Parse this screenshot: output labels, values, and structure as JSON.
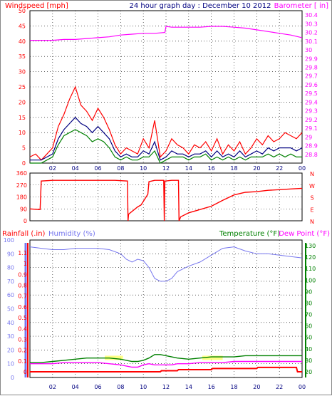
{
  "header": {
    "title": "24 hour graph day : December 10 2012"
  },
  "colors": {
    "wind": "#ff0000",
    "avg_wind": "#000080",
    "wind_low": "#008000",
    "barometer": "#ff00ff",
    "direction": "#ff0000",
    "humidity": "#7777ee",
    "temperature": "#008000",
    "dewpoint": "#ff00ff",
    "rain": "#ff0000",
    "solar": "#ffff66",
    "grid": "#000000"
  },
  "x_axis": {
    "tick_labels": [
      "02",
      "04",
      "06",
      "08",
      "10",
      "12",
      "14",
      "16",
      "18",
      "20",
      "22",
      "00"
    ],
    "x_range_hours": [
      0,
      24
    ]
  },
  "chart_data": [
    {
      "type": "line",
      "panel": "wind-barometer",
      "left_axis_label": "Windspeed [mph]",
      "right_axis_label": "Barometer [ in]",
      "left_ticks": [
        "0",
        "5",
        "10",
        "15",
        "20",
        "25",
        "30",
        "35",
        "40",
        "45",
        "50"
      ],
      "right_ticks": [
        "28.8",
        "28.9",
        "29",
        "29.1",
        "29.2",
        "29.3",
        "29.4",
        "29.5",
        "29.6",
        "29.7",
        "29.8",
        "29.9",
        "30",
        "30.1",
        "30.2",
        "30.3",
        "30.4"
      ],
      "ylim_left": [
        0,
        50
      ],
      "ylim_right": [
        28.7,
        30.45
      ],
      "grid": true,
      "series": [
        {
          "axis": "right",
          "color_key": "barometer",
          "x": [
            0,
            1,
            2,
            3,
            4,
            5,
            6,
            7,
            8,
            9,
            10,
            11,
            11.9,
            12.0,
            12.5,
            13,
            14,
            15,
            16,
            17,
            18,
            19,
            20,
            21,
            22,
            23,
            24
          ],
          "y": [
            30.11,
            30.11,
            30.11,
            30.12,
            30.12,
            30.13,
            30.14,
            30.15,
            30.17,
            30.18,
            30.19,
            30.19,
            30.2,
            30.27,
            30.26,
            30.26,
            30.26,
            30.26,
            30.27,
            30.27,
            30.26,
            30.25,
            30.23,
            30.21,
            30.19,
            30.17,
            30.14
          ]
        },
        {
          "axis": "left",
          "color_key": "wind",
          "x": [
            0,
            0.5,
            1,
            1.5,
            2,
            2.5,
            3,
            3.5,
            4,
            4.5,
            5,
            5.5,
            6,
            6.5,
            7,
            7.5,
            8,
            8.5,
            9,
            9.5,
            10,
            10.5,
            11,
            11.5,
            12,
            12.5,
            13,
            13.5,
            14,
            14.5,
            15,
            15.5,
            16,
            16.5,
            17,
            17.5,
            18,
            18.5,
            19,
            19.5,
            20,
            20.5,
            21,
            21.5,
            22,
            22.5,
            23,
            23.5,
            24
          ],
          "y": [
            2,
            3,
            1,
            3,
            5,
            12,
            16,
            21,
            25,
            19,
            17,
            14,
            18,
            15,
            11,
            6,
            3,
            5,
            4,
            3,
            8,
            5,
            14,
            2,
            4,
            8,
            6,
            5,
            3,
            6,
            5,
            7,
            4,
            8,
            3,
            6,
            4,
            7,
            3,
            5,
            8,
            6,
            9,
            7,
            8,
            10,
            9,
            8,
            10
          ]
        },
        {
          "axis": "left",
          "color_key": "avg_wind",
          "x": [
            0,
            0.5,
            1,
            1.5,
            2,
            2.5,
            3,
            3.5,
            4,
            4.5,
            5,
            5.5,
            6,
            6.5,
            7,
            7.5,
            8,
            8.5,
            9,
            9.5,
            10,
            10.5,
            11,
            11.5,
            12,
            12.5,
            13,
            13.5,
            14,
            14.5,
            15,
            15.5,
            16,
            16.5,
            17,
            17.5,
            18,
            18.5,
            19,
            19.5,
            20,
            20.5,
            21,
            21.5,
            22,
            22.5,
            23,
            23.5,
            24
          ],
          "y": [
            1,
            1,
            1,
            2,
            3,
            8,
            11,
            13,
            15,
            13,
            12,
            10,
            12,
            10,
            8,
            4,
            2,
            3,
            2,
            2,
            4,
            3,
            7,
            1,
            2,
            4,
            3,
            3,
            2,
            3,
            3,
            4,
            2,
            4,
            2,
            3,
            2,
            4,
            2,
            3,
            4,
            3,
            5,
            4,
            5,
            5,
            5,
            4,
            5
          ]
        },
        {
          "axis": "left",
          "color_key": "wind_low",
          "x": [
            0,
            0.5,
            1,
            1.5,
            2,
            2.5,
            3,
            3.5,
            4,
            4.5,
            5,
            5.5,
            6,
            6.5,
            7,
            7.5,
            8,
            8.5,
            9,
            9.5,
            10,
            10.5,
            11,
            11.5,
            12,
            12.5,
            13,
            13.5,
            14,
            14.5,
            15,
            15.5,
            16,
            16.5,
            17,
            17.5,
            18,
            18.5,
            19,
            19.5,
            20,
            20.5,
            21,
            21.5,
            22,
            22.5,
            23,
            23.5,
            24
          ],
          "y": [
            0,
            0,
            0,
            1,
            2,
            6,
            9,
            10,
            11,
            10,
            9,
            7,
            8,
            7,
            5,
            2,
            1,
            2,
            1,
            1,
            2,
            2,
            4,
            0,
            1,
            2,
            2,
            2,
            1,
            2,
            2,
            3,
            1,
            2,
            1,
            2,
            1,
            2,
            1,
            2,
            2,
            2,
            3,
            2,
            3,
            2,
            3,
            2,
            2
          ]
        }
      ]
    },
    {
      "type": "line",
      "panel": "wind-direction",
      "left_ticks": [
        "0",
        "90",
        "180",
        "270",
        "360"
      ],
      "right_ticks": [
        "N",
        "W",
        "S",
        "E",
        "N"
      ],
      "ylim": [
        0,
        360
      ],
      "grid": true,
      "series": [
        {
          "color_key": "direction",
          "x": [
            0,
            0.9,
            1.0,
            2,
            4,
            6,
            7.5,
            8.6,
            8.65,
            8.7,
            9.5,
            9.8,
            10.4,
            10.5,
            11,
            11.8,
            11.85,
            11.9,
            12.5,
            12.6,
            13.1,
            13.15,
            13.3,
            14,
            15,
            16,
            17,
            18,
            19,
            20,
            21,
            22,
            23,
            24
          ],
          "y": [
            90,
            85,
            300,
            305,
            305,
            305,
            305,
            300,
            0,
            50,
            105,
            120,
            200,
            295,
            305,
            305,
            0,
            300,
            305,
            305,
            305,
            0,
            30,
            60,
            85,
            110,
            155,
            195,
            215,
            220,
            230,
            235,
            240,
            245
          ]
        }
      ]
    },
    {
      "type": "line",
      "panel": "temp-humidity-rain",
      "left_axis_label_rain": "Rainfall (.in)",
      "left_axis_label_humidity": "Humidity (%)",
      "right_axis_label_temperature": "Temperature (°F)",
      "right_axis_label_dewpoint": "Dew Point (°F)",
      "humidity_ticks": [
        "0",
        "10",
        "20",
        "30",
        "40",
        "50",
        "60",
        "70",
        "80",
        "90",
        "100"
      ],
      "rain_ticks": [
        "0",
        "0.1",
        "0.2",
        "0.3",
        "0.4",
        "0.5",
        "0.6",
        "0.7",
        "0.8",
        "0.9",
        "1",
        "1.1"
      ],
      "temperature_ticks": [
        "20",
        "30",
        "40",
        "50",
        "60",
        "70",
        "80",
        "90",
        "100",
        "110",
        "120",
        "130"
      ],
      "ylim_humidity": [
        0,
        100
      ],
      "ylim_temperature": [
        15,
        135
      ],
      "grid": true,
      "series": [
        {
          "name": "Humidity (%)",
          "axis": "humidity",
          "color_key": "humidity",
          "x": [
            0,
            1,
            2,
            3,
            4,
            5,
            6,
            7,
            8,
            8.5,
            9,
            9.5,
            10,
            10.5,
            11,
            11.5,
            12,
            12.5,
            13,
            14,
            15,
            16,
            17,
            18,
            19,
            20,
            21,
            22,
            23,
            24
          ],
          "y": [
            95,
            94,
            93,
            93,
            94,
            94,
            94,
            93,
            90,
            86,
            84,
            86,
            85,
            80,
            72,
            70,
            70,
            72,
            77,
            81,
            84,
            89,
            94,
            95,
            92,
            90,
            90,
            89,
            88,
            87
          ]
        },
        {
          "name": "Temperature (°F)",
          "axis": "temperature",
          "color_key": "temperature",
          "x": [
            0,
            1,
            2,
            3,
            4,
            5,
            6,
            7,
            8,
            8.5,
            9,
            9.5,
            10,
            10.5,
            11,
            11.5,
            12,
            12.5,
            13,
            14,
            15,
            16,
            17,
            18,
            19,
            20,
            21,
            22,
            23,
            24
          ],
          "y": [
            28,
            28,
            29,
            30,
            31,
            32,
            32,
            32,
            31,
            30,
            29,
            29,
            30,
            32,
            35,
            35,
            34,
            33,
            32,
            31,
            32,
            33,
            33,
            33,
            34,
            34,
            34,
            34,
            34,
            34
          ]
        },
        {
          "name": "Dew Point (°F)",
          "axis": "temperature",
          "color_key": "dewpoint",
          "x": [
            0,
            1,
            2,
            3,
            4,
            5,
            6,
            7,
            8,
            8.5,
            9,
            9.5,
            10,
            10.5,
            11,
            11.5,
            12,
            12.5,
            13,
            14,
            15,
            16,
            17,
            18,
            19,
            20,
            21,
            22,
            23,
            24
          ],
          "y": [
            27,
            27,
            27,
            28,
            28,
            28,
            28,
            27,
            26,
            25,
            24,
            24,
            26,
            27,
            26,
            26,
            26,
            26,
            27,
            27,
            28,
            28,
            28,
            29,
            29,
            29,
            29,
            29,
            29,
            29
          ]
        },
        {
          "name": "Rainfall (.in)",
          "axis": "rain",
          "color_key": "rain",
          "x": [
            0,
            11.5,
            11.6,
            13,
            13.1,
            16,
            16.1,
            20,
            20.1,
            23.5,
            23.6,
            24
          ],
          "y": [
            0,
            0,
            0.01,
            0.01,
            0.02,
            0.02,
            0.03,
            0.03,
            0.04,
            0.04,
            0.0,
            0.0
          ]
        }
      ]
    }
  ]
}
